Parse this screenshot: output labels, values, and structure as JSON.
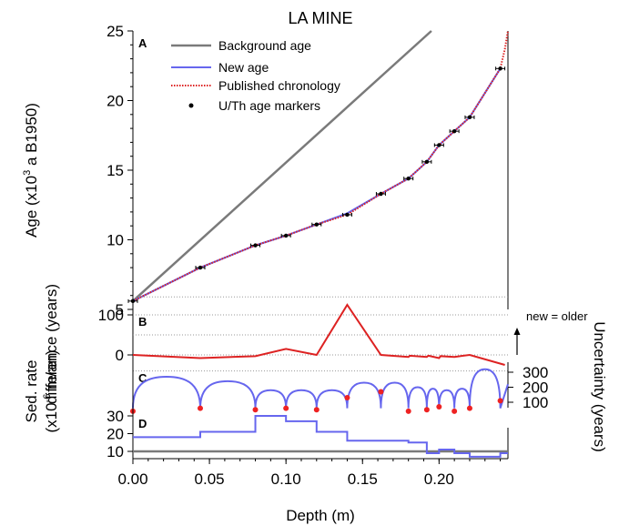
{
  "chart_data": {
    "type": "line",
    "title": "LA MINE",
    "xlabel": "Depth (m)",
    "xlim": [
      0.0,
      0.245
    ],
    "x_ticks": [
      "0.00",
      "0.05",
      "0.10",
      "0.15",
      "0.20"
    ],
    "panels": {
      "A": {
        "label": "A",
        "ylabel_main": "Age (x10",
        "ylabel_sup": "3",
        "ylabel_rest": " a B1950)",
        "ylim": [
          5,
          25
        ],
        "y_ticks": [
          "5",
          "10",
          "15",
          "20",
          "25"
        ],
        "legend_position": "top-left",
        "series": [
          {
            "name": "Background age",
            "color": "#7a7a7a",
            "style": "solid",
            "x": [
              0.0,
              0.195
            ],
            "y": [
              5.6,
              25.0
            ]
          },
          {
            "name": "New age",
            "color": "#6666ee",
            "style": "solid",
            "x": [
              0.0,
              0.044,
              0.08,
              0.1,
              0.12,
              0.14,
              0.162,
              0.18,
              0.192,
              0.2,
              0.21,
              0.22,
              0.24
            ],
            "y": [
              5.6,
              8.0,
              9.6,
              10.3,
              11.1,
              11.9,
              13.3,
              14.4,
              15.6,
              16.8,
              17.8,
              18.8,
              22.3
            ]
          },
          {
            "name": "Published chronology",
            "color": "#dd2222",
            "style": "dotted",
            "x": [
              0.0,
              0.044,
              0.08,
              0.1,
              0.12,
              0.14,
              0.162,
              0.18,
              0.192,
              0.2,
              0.21,
              0.22,
              0.24,
              0.243,
              0.245
            ],
            "y": [
              5.6,
              8.0,
              9.6,
              10.3,
              11.1,
              11.8,
              13.3,
              14.4,
              15.6,
              16.8,
              17.8,
              18.8,
              22.3,
              23.7,
              25.0
            ]
          },
          {
            "name": "U/Th age markers",
            "color": "#000000",
            "style": "marker",
            "x": [
              0.0,
              0.044,
              0.08,
              0.1,
              0.12,
              0.14,
              0.162,
              0.18,
              0.192,
              0.2,
              0.21,
              0.22,
              0.24
            ],
            "y": [
              5.6,
              8.0,
              9.6,
              10.3,
              11.1,
              11.8,
              13.3,
              14.4,
              15.6,
              16.8,
              17.8,
              18.8,
              22.3
            ]
          }
        ]
      },
      "B": {
        "label": "B",
        "ylabel": "difference (years)",
        "annotation": "new = older",
        "y_ticks": [
          "0",
          "100"
        ],
        "ylim": [
          -40,
          145
        ],
        "gridlines": [
          -40,
          0,
          50,
          100,
          145
        ],
        "series": [
          {
            "name": "difference",
            "color": "#dd2222",
            "x": [
              0.0,
              0.044,
              0.08,
              0.1,
              0.12,
              0.14,
              0.162,
              0.18,
              0.181,
              0.192,
              0.193,
              0.2,
              0.201,
              0.21,
              0.22,
              0.243
            ],
            "y": [
              0,
              -8,
              -3,
              15,
              0,
              125,
              0,
              -5,
              -2,
              -5,
              -2,
              -8,
              -3,
              -5,
              0,
              -25
            ]
          }
        ]
      },
      "C": {
        "label": "C",
        "ylabel": "Uncertainty (years)",
        "y_ticks": [
          "100",
          "200",
          "300"
        ],
        "ylim": [
          0,
          350
        ],
        "series": [
          {
            "name": "Uncertainty",
            "color": "#6666ee",
            "segments": [
              {
                "x0": 0.0,
                "x1": 0.044,
                "peak": 270
              },
              {
                "x0": 0.044,
                "x1": 0.08,
                "peak": 240
              },
              {
                "x0": 0.08,
                "x1": 0.1,
                "peak": 180
              },
              {
                "x0": 0.1,
                "x1": 0.12,
                "peak": 180
              },
              {
                "x0": 0.12,
                "x1": 0.14,
                "peak": 180
              },
              {
                "x0": 0.14,
                "x1": 0.162,
                "peak": 230
              },
              {
                "x0": 0.162,
                "x1": 0.18,
                "peak": 230
              },
              {
                "x0": 0.18,
                "x1": 0.192,
                "peak": 200
              },
              {
                "x0": 0.192,
                "x1": 0.2,
                "peak": 190
              },
              {
                "x0": 0.2,
                "x1": 0.21,
                "peak": 180
              },
              {
                "x0": 0.21,
                "x1": 0.22,
                "peak": 190
              },
              {
                "x0": 0.22,
                "x1": 0.24,
                "peak": 320
              }
            ],
            "base": 60
          },
          {
            "name": "U/Th uncertainty",
            "color": "#ee2222",
            "x": [
              0.0,
              0.044,
              0.08,
              0.1,
              0.12,
              0.14,
              0.162,
              0.18,
              0.192,
              0.2,
              0.21,
              0.22,
              0.24
            ],
            "y": [
              40,
              60,
              50,
              60,
              50,
              130,
              170,
              40,
              50,
              70,
              40,
              60,
              110
            ]
          }
        ]
      },
      "D": {
        "label": "D",
        "ylabel_main": "Sed. rate",
        "ylabel_unit_main": "(x10",
        "ylabel_sup": "-6",
        "ylabel_unit_rest": " m/an)",
        "y_ticks": [
          "10",
          "20",
          "30"
        ],
        "ylim": [
          5,
          33
        ],
        "series": [
          {
            "name": "Background rate",
            "color": "#7a7a7a",
            "x": [
              0.0,
              0.245
            ],
            "y": [
              10,
              10
            ]
          },
          {
            "name": "Sed. rate",
            "color": "#6666ee",
            "step": true,
            "x": [
              0.0,
              0.044,
              0.08,
              0.1,
              0.12,
              0.14,
              0.18,
              0.192,
              0.2,
              0.21,
              0.22,
              0.24,
              0.245
            ],
            "y": [
              18,
              21,
              30,
              27,
              21,
              16,
              15,
              9,
              11,
              9,
              7,
              9,
              9
            ]
          }
        ]
      }
    }
  }
}
